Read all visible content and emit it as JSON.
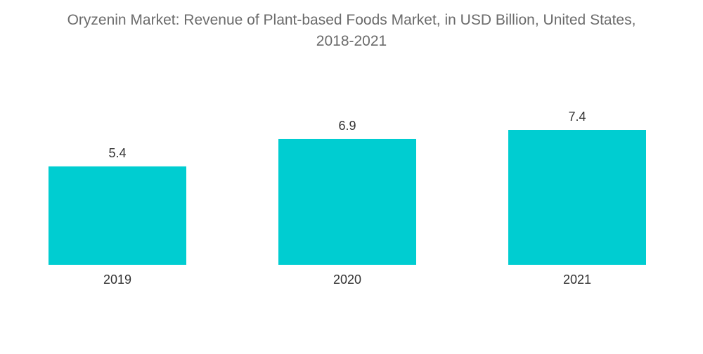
{
  "title_line1": "Oryzenin Market: Revenue of Plant-based Foods Market, in USD Billion, United States,",
  "title_line2": "2018-2021",
  "colors": {
    "bar": "#00CDD1",
    "title": "#6b6b6b",
    "label": "#333333"
  },
  "chart_data": {
    "type": "bar",
    "categories": [
      "2019",
      "2020",
      "2021"
    ],
    "values": [
      5.4,
      6.9,
      7.4
    ],
    "data_labels": [
      "5.4",
      "6.9",
      "7.4"
    ],
    "title": "Oryzenin Market: Revenue of Plant-based Foods Market, in USD Billion, United States, 2018-2021",
    "xlabel": "",
    "ylabel": "",
    "ylim": [
      0,
      7.4
    ],
    "grid": false,
    "legend": "none"
  }
}
